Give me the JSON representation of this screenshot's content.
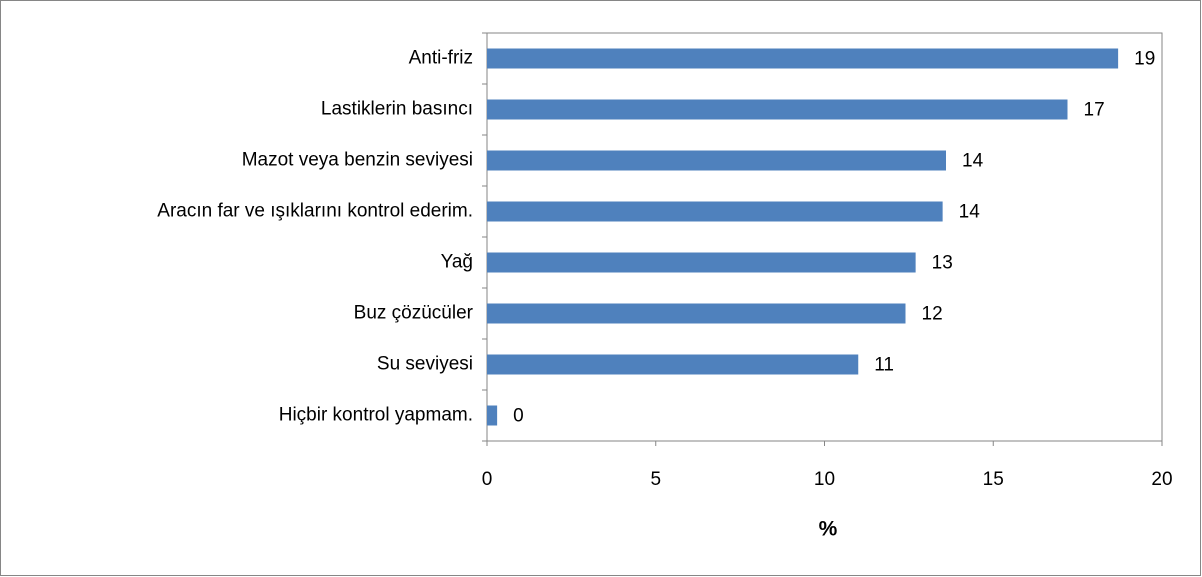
{
  "chart_data": {
    "type": "barh",
    "categories": [
      "Anti-friz",
      "Lastiklerin basıncı",
      "Mazot veya benzin seviyesi",
      "Aracın far ve ışıklarını kontrol ederim.",
      "Yağ",
      "Buz çözücüler",
      "Su seviyesi",
      "Hiçbir kontrol yapmam."
    ],
    "values": [
      18.7,
      17.2,
      13.6,
      13.5,
      12.7,
      12.4,
      11.0,
      0.3
    ],
    "value_labels": [
      "19",
      "17",
      "14",
      "14",
      "13",
      "12",
      "11",
      "0"
    ],
    "color": "#4f81bd",
    "xlabel": "%",
    "xlim": [
      0,
      20
    ],
    "xticks": [
      0,
      5,
      10,
      15,
      20
    ],
    "grid": false
  }
}
